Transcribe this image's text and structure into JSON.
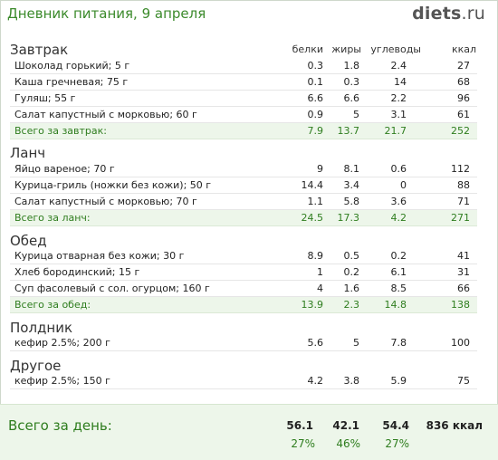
{
  "header": {
    "title": "Дневник питания, 9 апреля",
    "logo_name": "diets",
    "logo_tld": ".ru"
  },
  "columns": [
    "белки",
    "жиры",
    "углеводы",
    "ккал"
  ],
  "sections": [
    {
      "title": "Завтрак",
      "items": [
        {
          "name": "Шоколад горький; 5 г",
          "protein": "0.3",
          "fat": "1.8",
          "carbs": "2.4",
          "kcal": "27"
        },
        {
          "name": "Каша гречневая; 75 г",
          "protein": "0.1",
          "fat": "0.3",
          "carbs": "14",
          "kcal": "68"
        },
        {
          "name": "Гуляш; 55 г",
          "protein": "6.6",
          "fat": "6.6",
          "carbs": "2.2",
          "kcal": "96"
        },
        {
          "name": "Салат капустный с морковью; 60 г",
          "protein": "0.9",
          "fat": "5",
          "carbs": "3.1",
          "kcal": "61"
        }
      ],
      "total": {
        "name": "Всего за завтрак:",
        "protein": "7.9",
        "fat": "13.7",
        "carbs": "21.7",
        "kcal": "252"
      }
    },
    {
      "title": "Ланч",
      "items": [
        {
          "name": "Яйцо вареное; 70 г",
          "protein": "9",
          "fat": "8.1",
          "carbs": "0.6",
          "kcal": "112"
        },
        {
          "name": "Курица-гриль (ножки без кожи); 50 г",
          "protein": "14.4",
          "fat": "3.4",
          "carbs": "0",
          "kcal": "88"
        },
        {
          "name": "Салат капустный с морковью; 70 г",
          "protein": "1.1",
          "fat": "5.8",
          "carbs": "3.6",
          "kcal": "71"
        }
      ],
      "total": {
        "name": "Всего за ланч:",
        "protein": "24.5",
        "fat": "17.3",
        "carbs": "4.2",
        "kcal": "271"
      }
    },
    {
      "title": "Обед",
      "items": [
        {
          "name": "Курица отварная без кожи; 30 г",
          "protein": "8.9",
          "fat": "0.5",
          "carbs": "0.2",
          "kcal": "41"
        },
        {
          "name": "Хлеб бородинский; 15 г",
          "protein": "1",
          "fat": "0.2",
          "carbs": "6.1",
          "kcal": "31"
        },
        {
          "name": "Суп фасолевый с сол. огурцом; 160 г",
          "protein": "4",
          "fat": "1.6",
          "carbs": "8.5",
          "kcal": "66"
        }
      ],
      "total": {
        "name": "Всего за обед:",
        "protein": "13.9",
        "fat": "2.3",
        "carbs": "14.8",
        "kcal": "138"
      }
    },
    {
      "title": "Полдник",
      "items": [
        {
          "name": "кефир 2.5%; 200 г",
          "protein": "5.6",
          "fat": "5",
          "carbs": "7.8",
          "kcal": "100"
        }
      ]
    },
    {
      "title": "Другое",
      "items": [
        {
          "name": "кефир 2.5%; 150 г",
          "protein": "4.2",
          "fat": "3.8",
          "carbs": "5.9",
          "kcal": "75"
        }
      ]
    }
  ],
  "day_total": {
    "label": "Всего за день:",
    "protein": "56.1",
    "fat": "42.1",
    "carbs": "54.4",
    "kcal": "836 ккал",
    "protein_pct": "27%",
    "fat_pct": "46%",
    "carbs_pct": "27%"
  }
}
